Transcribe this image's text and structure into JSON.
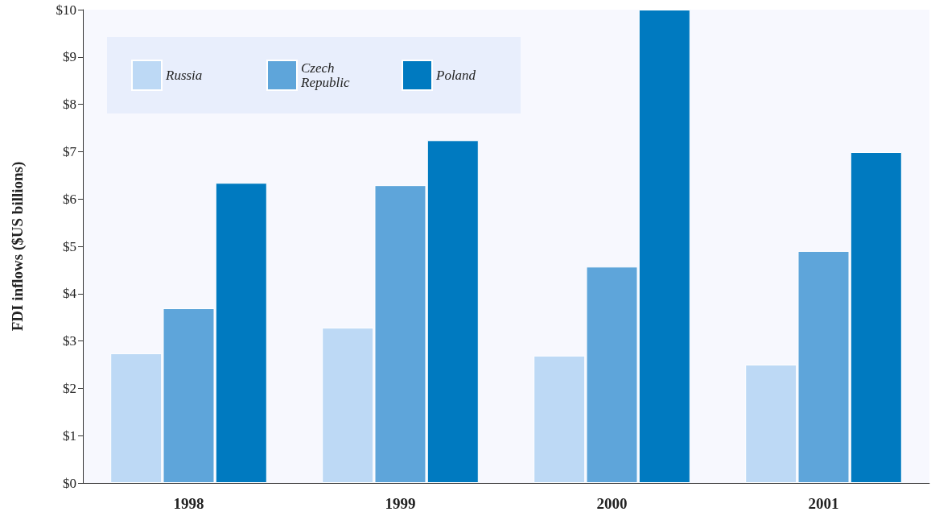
{
  "chart_data": {
    "type": "bar",
    "ylabel": "FDI inflows ($US billions)",
    "categories": [
      "1998",
      "1999",
      "2000",
      "2001"
    ],
    "series": [
      {
        "name": "Russia",
        "color": "#bdd9f5",
        "values": [
          2.74,
          3.28,
          2.69,
          2.5
        ]
      },
      {
        "name": "Czech Republic",
        "color": "#5ea5da",
        "values": [
          3.69,
          6.29,
          4.57,
          4.9
        ]
      },
      {
        "name": "Poland",
        "color": "#007ac0",
        "values": [
          6.34,
          7.24,
          10,
          6.99
        ]
      }
    ],
    "ylim": [
      0,
      10
    ],
    "yticks": [
      {
        "value": 0,
        "label": "$0"
      },
      {
        "value": 1,
        "label": "$1"
      },
      {
        "value": 2,
        "label": "$2"
      },
      {
        "value": 3,
        "label": "$3"
      },
      {
        "value": 4,
        "label": "$4"
      },
      {
        "value": 5,
        "label": "$5"
      },
      {
        "value": 6,
        "label": "$6"
      },
      {
        "value": 7,
        "label": "$7"
      },
      {
        "value": 8,
        "label": "$8"
      },
      {
        "value": 9,
        "label": "$9"
      },
      {
        "value": 10,
        "label": "$10"
      }
    ],
    "grid": false,
    "legend": "top left"
  }
}
